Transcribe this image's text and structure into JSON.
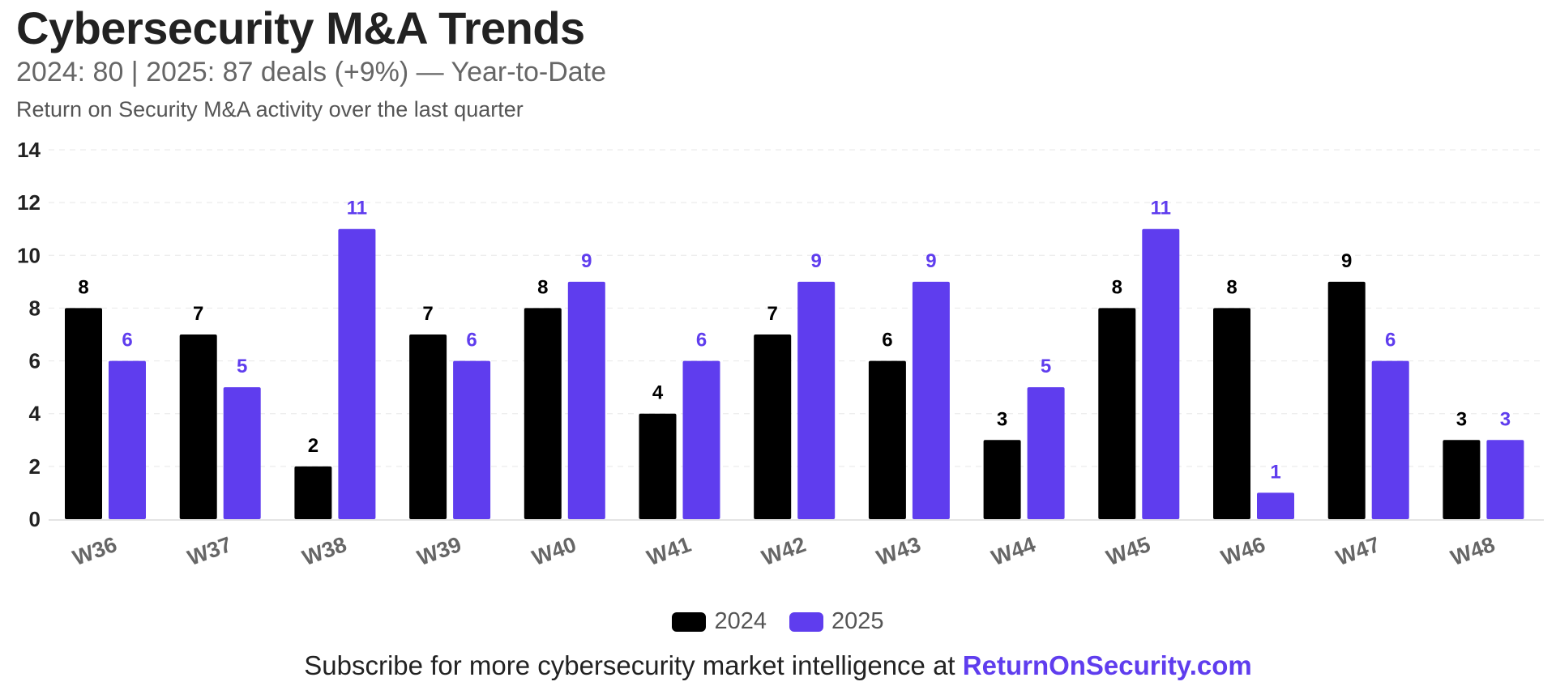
{
  "header": {
    "title": "Cybersecurity M&A Trends",
    "subtitle": "2024: 80 | 2025: 87 deals (+9%) — Year-to-Date",
    "description": "Return on Security M&A activity over the last quarter"
  },
  "colors": {
    "series_2024": "#000000",
    "series_2025": "#5f3dee",
    "grid": "#ececec"
  },
  "chart_data": {
    "type": "bar",
    "title": "Cybersecurity M&A Trends",
    "xlabel": "",
    "ylabel": "",
    "ylim": [
      0,
      14
    ],
    "yticks": [
      0,
      2,
      4,
      6,
      8,
      10,
      12,
      14
    ],
    "grid": true,
    "legend_position": "bottom-center",
    "categories": [
      "W36",
      "W37",
      "W38",
      "W39",
      "W40",
      "W41",
      "W42",
      "W43",
      "W44",
      "W45",
      "W46",
      "W47",
      "W48"
    ],
    "series": [
      {
        "name": "2024",
        "values": [
          8,
          7,
          2,
          7,
          8,
          4,
          7,
          6,
          3,
          8,
          8,
          9,
          3
        ]
      },
      {
        "name": "2025",
        "values": [
          6,
          5,
          11,
          6,
          9,
          6,
          9,
          9,
          5,
          11,
          1,
          6,
          3
        ]
      }
    ]
  },
  "legend": {
    "items": [
      {
        "label": "2024"
      },
      {
        "label": "2025"
      }
    ]
  },
  "footer": {
    "text": "Subscribe for more cybersecurity market intelligence at",
    "link": "ReturnOnSecurity.com"
  }
}
